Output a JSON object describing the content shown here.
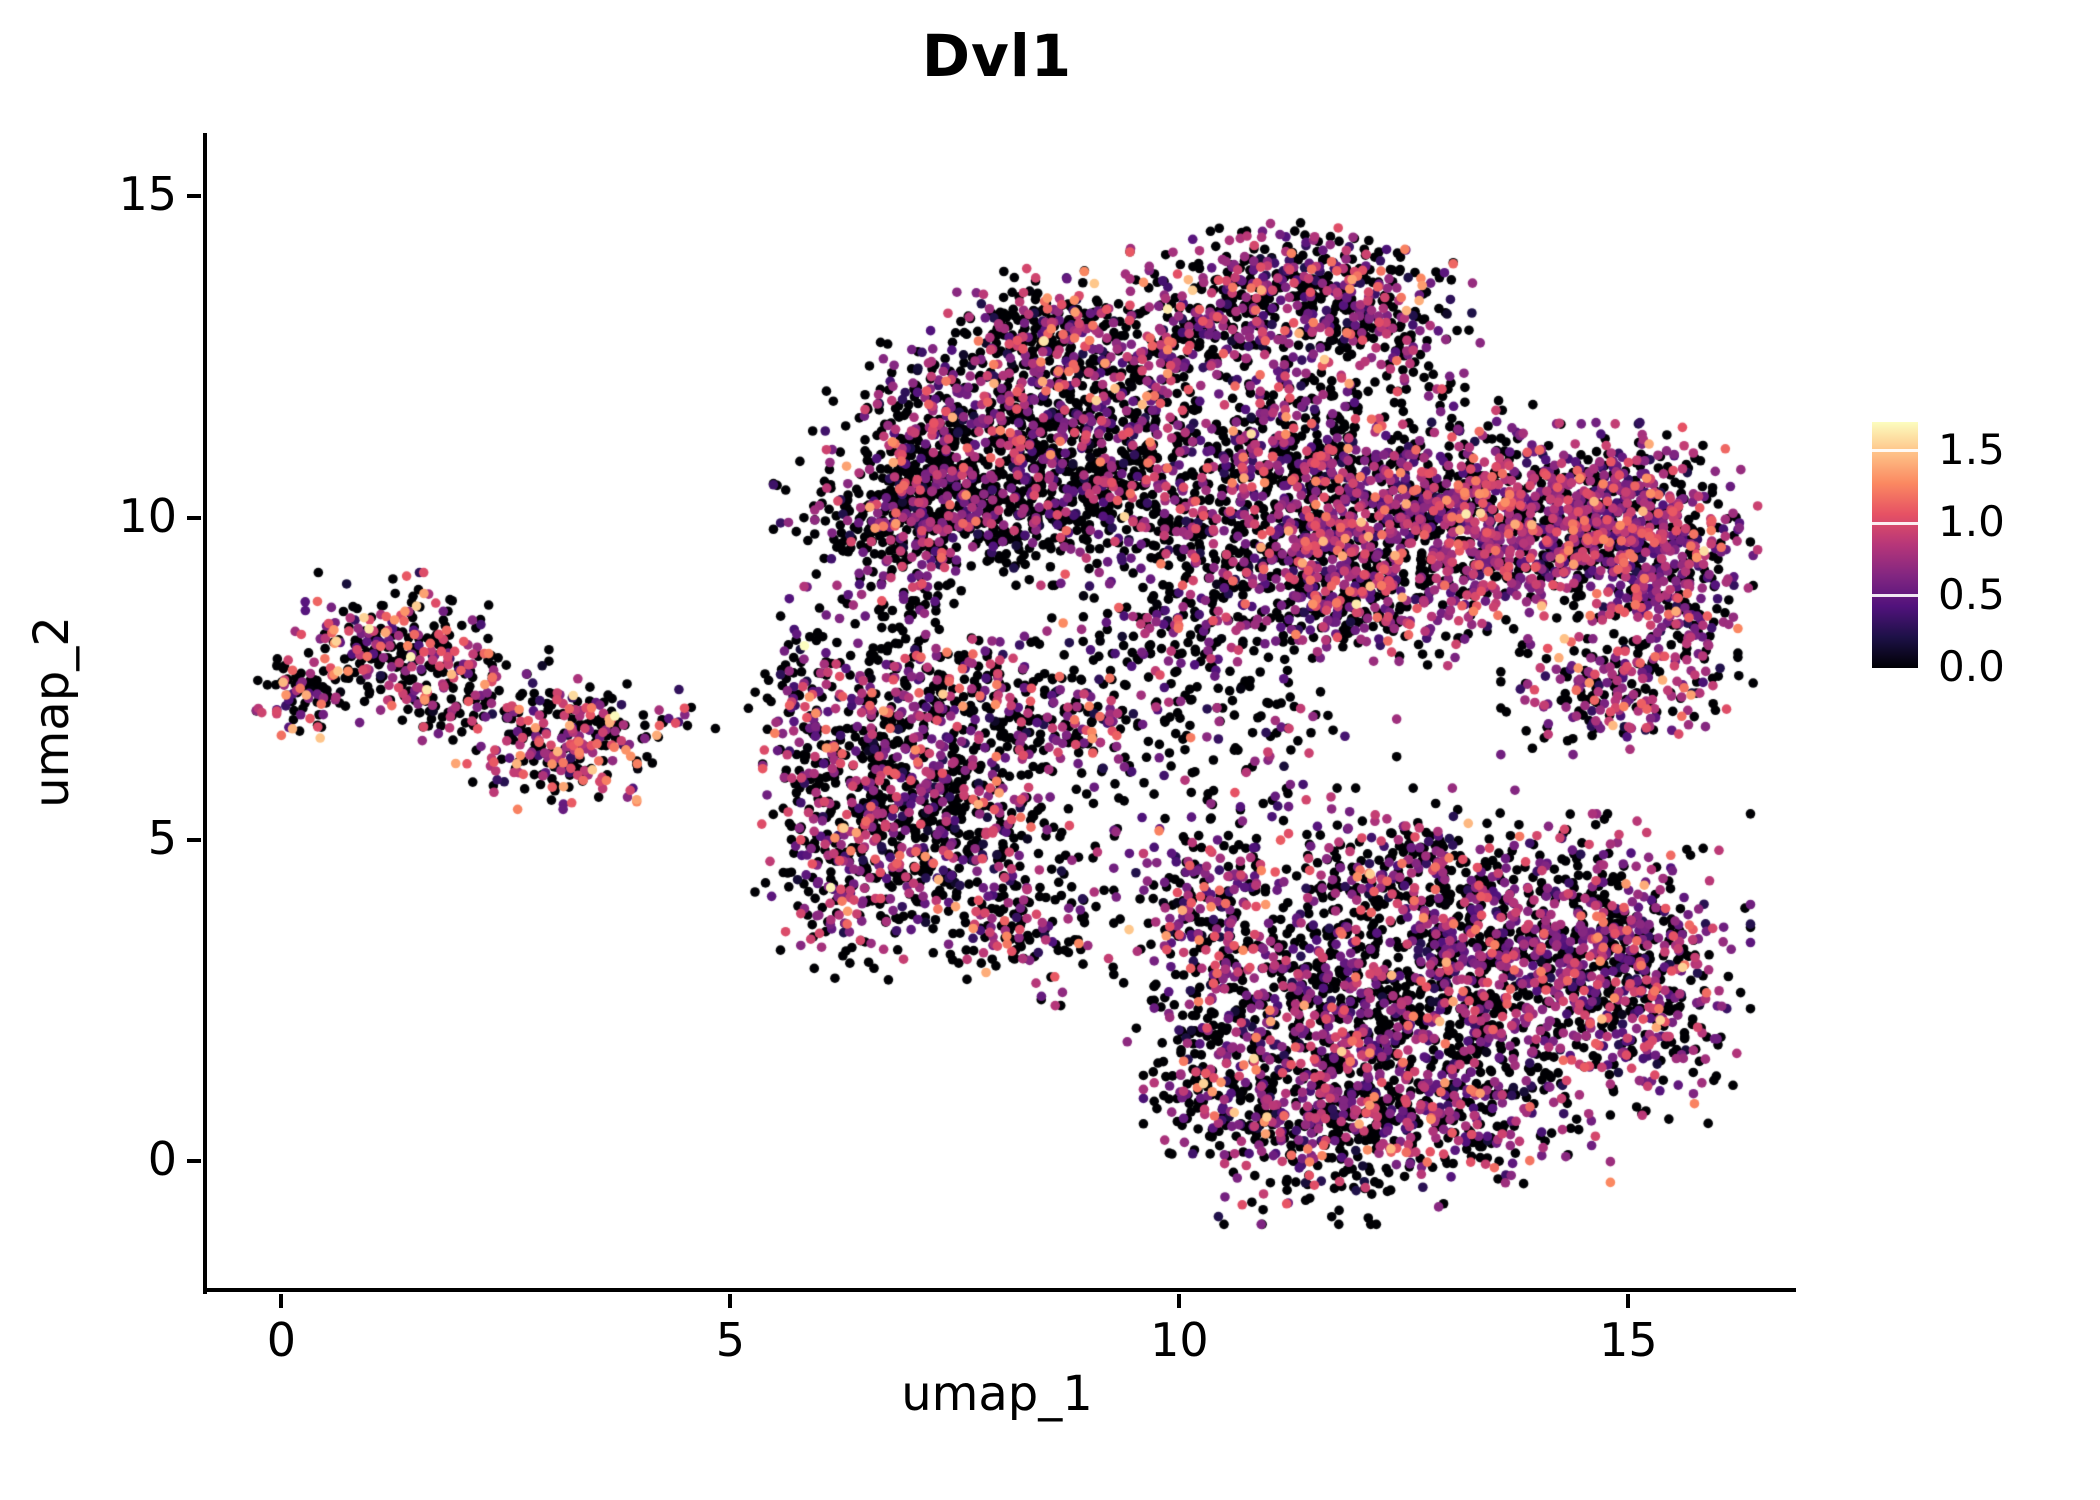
{
  "chart_data": {
    "type": "scatter",
    "title": "Dvl1",
    "xlabel": "umap_1",
    "ylabel": "umap_2",
    "xlim": [
      -0.85,
      16.8
    ],
    "ylim": [
      -2.0,
      15.95
    ],
    "x_ticks": [
      0,
      5,
      10,
      15
    ],
    "x_tick_labels": [
      "0",
      "5",
      "10",
      "15"
    ],
    "y_ticks": [
      0,
      5,
      10,
      15
    ],
    "y_tick_labels": [
      "0",
      "5",
      "10",
      "15"
    ],
    "grid": false,
    "background": "#ffffff",
    "point_radius": 4.8,
    "seed": 1337,
    "legend": {
      "position": "right",
      "vmin": 0.0,
      "vmax": 1.7,
      "tick_values": [
        1.5,
        1.0,
        0.5,
        0.0
      ],
      "tick_labels": [
        "1.5",
        "1.0",
        "0.5",
        "0.0"
      ]
    },
    "colormap": {
      "name": "magma",
      "stops": [
        [
          0.0,
          "#000004"
        ],
        [
          0.125,
          "#1d1147"
        ],
        [
          0.25,
          "#51127c"
        ],
        [
          0.375,
          "#822681"
        ],
        [
          0.5,
          "#b63679"
        ],
        [
          0.625,
          "#e65164"
        ],
        [
          0.75,
          "#fb8861"
        ],
        [
          0.875,
          "#fec287"
        ],
        [
          1.0,
          "#fcfdbf"
        ]
      ]
    },
    "blob_format": [
      "center_x",
      "center_y",
      "spread_x",
      "spread_y",
      "n_points",
      "fraction_zero",
      "expr_mean",
      "expr_sd"
    ],
    "clusters": [
      {
        "name": "left-island",
        "blobs": [
          [
            0.25,
            7.25,
            0.22,
            0.28,
            70,
            0.45,
            0.85,
            0.35
          ],
          [
            1.15,
            7.95,
            0.5,
            0.5,
            240,
            0.45,
            0.85,
            0.35
          ],
          [
            1.9,
            7.45,
            0.45,
            0.4,
            120,
            0.45,
            0.85,
            0.35
          ],
          [
            2.95,
            6.55,
            0.42,
            0.45,
            200,
            0.45,
            0.85,
            0.35
          ],
          [
            3.55,
            6.5,
            0.35,
            0.35,
            80,
            0.48,
            0.85,
            0.35
          ],
          [
            4.25,
            6.9,
            0.28,
            0.18,
            14,
            0.5,
            0.7,
            0.3
          ]
        ]
      },
      {
        "name": "mid-strip",
        "blobs": [
          [
            5.85,
            7.15,
            0.3,
            0.75,
            115,
            0.5,
            0.75,
            0.35
          ]
        ]
      },
      {
        "name": "center-cluster",
        "blobs": [
          [
            6.8,
            6.3,
            0.6,
            0.65,
            300,
            0.52,
            0.7,
            0.32
          ],
          [
            7.6,
            5.0,
            0.8,
            0.8,
            420,
            0.55,
            0.7,
            0.3
          ],
          [
            6.35,
            4.5,
            0.45,
            0.7,
            230,
            0.5,
            0.75,
            0.32
          ],
          [
            8.5,
            6.8,
            0.8,
            0.6,
            260,
            0.6,
            0.7,
            0.3
          ],
          [
            8.3,
            3.5,
            0.45,
            0.45,
            110,
            0.55,
            0.7,
            0.3
          ],
          [
            7.3,
            7.6,
            0.5,
            0.4,
            120,
            0.55,
            0.75,
            0.3
          ],
          [
            6.9,
            8.8,
            0.35,
            0.5,
            70,
            0.6,
            0.65,
            0.3
          ]
        ]
      },
      {
        "name": "upper-center-cluster",
        "blobs": [
          [
            8.0,
            10.15,
            1.05,
            0.5,
            650,
            0.68,
            0.6,
            0.3
          ],
          [
            8.3,
            11.5,
            0.75,
            0.7,
            450,
            0.55,
            0.7,
            0.32
          ],
          [
            8.55,
            12.8,
            0.55,
            0.45,
            280,
            0.5,
            0.75,
            0.33
          ],
          [
            7.15,
            11.2,
            0.45,
            0.7,
            220,
            0.55,
            0.7,
            0.3
          ],
          [
            9.4,
            11.2,
            0.55,
            0.7,
            230,
            0.55,
            0.7,
            0.3
          ],
          [
            6.9,
            9.9,
            0.4,
            0.4,
            150,
            0.6,
            0.65,
            0.3
          ]
        ]
      },
      {
        "name": "top-cluster",
        "blobs": [
          [
            11.25,
            13.8,
            0.75,
            0.33,
            260,
            0.5,
            0.7,
            0.33
          ],
          [
            10.6,
            13.1,
            0.5,
            0.4,
            170,
            0.5,
            0.7,
            0.3
          ],
          [
            12.15,
            13.1,
            0.5,
            0.5,
            190,
            0.5,
            0.7,
            0.3
          ],
          [
            9.9,
            12.6,
            0.35,
            0.35,
            90,
            0.55,
            0.65,
            0.3
          ],
          [
            11.5,
            11.9,
            0.7,
            0.5,
            130,
            0.55,
            0.65,
            0.3
          ]
        ]
      },
      {
        "name": "right-cluster",
        "blobs": [
          [
            12.3,
            10.2,
            0.9,
            0.75,
            650,
            0.4,
            0.72,
            0.3
          ],
          [
            13.8,
            9.9,
            0.95,
            0.65,
            780,
            0.35,
            0.72,
            0.28
          ],
          [
            15.0,
            9.8,
            0.6,
            0.7,
            480,
            0.35,
            0.72,
            0.28
          ],
          [
            11.4,
            9.3,
            0.55,
            0.5,
            240,
            0.45,
            0.7,
            0.28
          ],
          [
            12.2,
            8.6,
            0.7,
            0.4,
            200,
            0.5,
            0.7,
            0.28
          ],
          [
            14.9,
            7.4,
            0.55,
            0.45,
            230,
            0.4,
            0.75,
            0.3
          ],
          [
            15.55,
            8.6,
            0.35,
            0.55,
            140,
            0.4,
            0.72,
            0.28
          ],
          [
            11.1,
            11.0,
            0.5,
            0.45,
            180,
            0.5,
            0.68,
            0.3
          ],
          [
            10.2,
            9.7,
            0.5,
            0.6,
            150,
            0.55,
            0.7,
            0.3
          ]
        ]
      },
      {
        "name": "gap-sparse",
        "blobs": [
          [
            10.5,
            6.9,
            0.8,
            0.8,
            150,
            0.6,
            0.65,
            0.3
          ],
          [
            9.8,
            8.3,
            0.6,
            0.5,
            120,
            0.6,
            0.65,
            0.3
          ]
        ]
      },
      {
        "name": "bottom-right-cluster",
        "blobs": [
          [
            12.0,
            2.6,
            0.95,
            0.95,
            650,
            0.5,
            0.68,
            0.3
          ],
          [
            13.7,
            2.9,
            0.95,
            0.9,
            650,
            0.45,
            0.7,
            0.28
          ],
          [
            11.4,
            0.7,
            0.75,
            0.7,
            420,
            0.5,
            0.68,
            0.3
          ],
          [
            13.0,
            0.9,
            0.75,
            0.6,
            330,
            0.5,
            0.7,
            0.28
          ],
          [
            14.8,
            3.6,
            0.65,
            0.75,
            330,
            0.45,
            0.7,
            0.28
          ],
          [
            10.35,
            4.0,
            0.45,
            0.55,
            190,
            0.5,
            0.7,
            0.3
          ],
          [
            10.5,
            1.9,
            0.45,
            0.75,
            190,
            0.55,
            0.65,
            0.3
          ],
          [
            15.25,
            2.3,
            0.45,
            0.75,
            190,
            0.45,
            0.7,
            0.28
          ],
          [
            12.6,
            4.6,
            0.8,
            0.5,
            260,
            0.5,
            0.7,
            0.28
          ]
        ]
      }
    ]
  }
}
